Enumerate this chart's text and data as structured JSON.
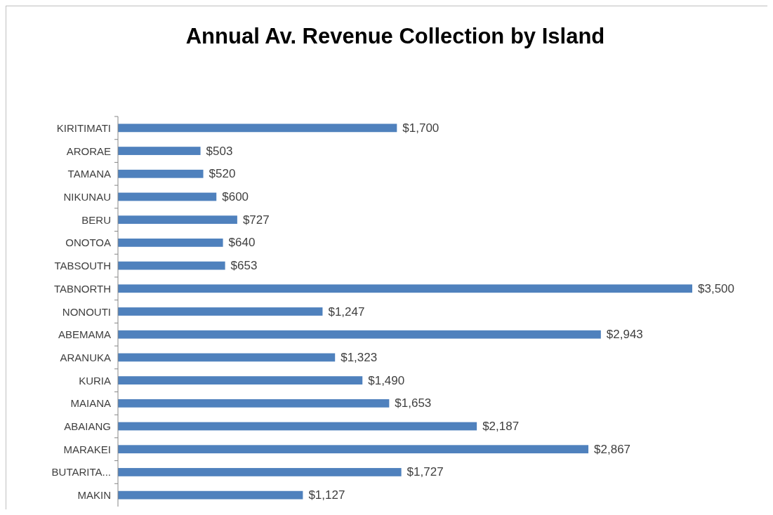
{
  "chart_data": {
    "type": "bar",
    "orientation": "horizontal",
    "title": "Annual Av. Revenue Collection by Island",
    "categories": [
      "KIRITIMATI",
      "ARORAE",
      "TAMANA",
      "NIKUNAU",
      "BERU",
      "ONOTOA",
      "TABSOUTH",
      "TABNORTH",
      "NONOUTI",
      "ABEMAMA",
      "ARANUKA",
      "KURIA",
      "MAIANA",
      "ABAIANG",
      "MARAKEI",
      "BUTARITA...",
      "MAKIN"
    ],
    "values": [
      1700,
      503,
      520,
      600,
      727,
      640,
      653,
      3500,
      1247,
      2943,
      1323,
      1490,
      1653,
      2187,
      2867,
      1727,
      1127
    ],
    "value_labels": [
      "$1,700",
      "$503",
      "$520",
      "$600",
      "$727",
      "$640",
      "$653",
      "$3,500",
      "$1,247",
      "$2,943",
      "$1,323",
      "$1,490",
      "$1,653",
      "$2,187",
      "$2,867",
      "$1,727",
      "$1,127"
    ],
    "color": "#4f81bd"
  }
}
